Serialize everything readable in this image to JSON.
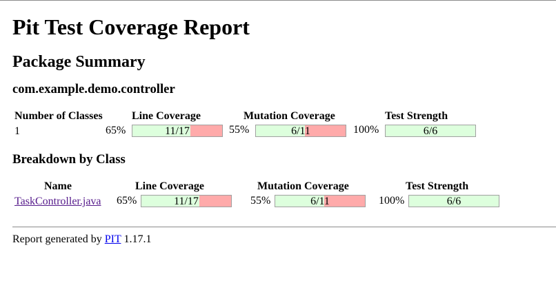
{
  "title": "Pit Test Coverage Report",
  "package_summary": {
    "heading": "Package Summary",
    "package_name": "com.example.demo.controller",
    "headers": {
      "classes": "Number of Classes",
      "line": "Line Coverage",
      "mutation": "Mutation Coverage",
      "strength": "Test Strength"
    },
    "row": {
      "classes": "1",
      "line_pct": "65%",
      "line_ratio": "11/17",
      "line_fraction": 0.647,
      "mutation_pct": "55%",
      "mutation_ratio": "6/11",
      "mutation_fraction": 0.545,
      "strength_pct": "100%",
      "strength_ratio": "6/6",
      "strength_fraction": 1.0
    }
  },
  "breakdown": {
    "heading": "Breakdown by Class",
    "headers": {
      "name": "Name",
      "line": "Line Coverage",
      "mutation": "Mutation Coverage",
      "strength": "Test Strength"
    },
    "rows": [
      {
        "name": "TaskController.java",
        "line_pct": "65%",
        "line_ratio": "11/17",
        "line_fraction": 0.647,
        "mutation_pct": "55%",
        "mutation_ratio": "6/11",
        "mutation_fraction": 0.545,
        "strength_pct": "100%",
        "strength_ratio": "6/6",
        "strength_fraction": 1.0
      }
    ]
  },
  "footer": {
    "prefix": "Report generated by",
    "link_text": "PIT",
    "version": "1.17.1"
  },
  "colors": {
    "covered": "#ddffdd",
    "uncovered": "#ffaaaa"
  }
}
